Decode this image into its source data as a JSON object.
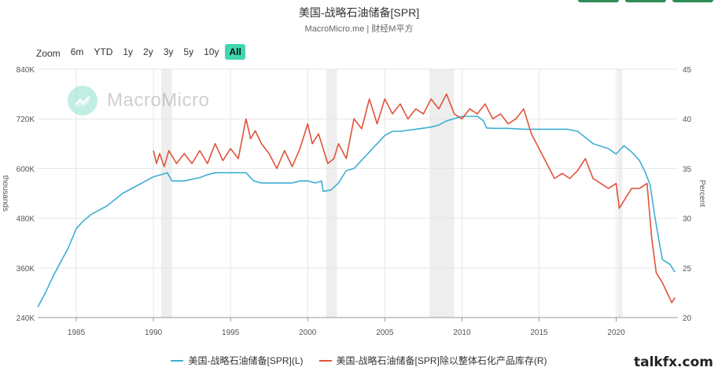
{
  "header": {
    "title": "美国-战略石油储备[SPR]",
    "subtitle": "MacroMicro.me | 财经M平方"
  },
  "zoom": {
    "label": "Zoom",
    "buttons": [
      "6m",
      "YTD",
      "1y",
      "2y",
      "3y",
      "5y",
      "10y",
      "All"
    ],
    "active": "All"
  },
  "watermark": {
    "text": "MacroMicro"
  },
  "brand": {
    "text": "talkfx.com"
  },
  "legend": [
    {
      "label": "美国-战略石油储备[SPR](L)",
      "color": "#3eaed2"
    },
    {
      "label": "美国-战略石油储备[SPR]除以整体石化产品库存(R)",
      "color": "#e0533b"
    }
  ],
  "chart_data": {
    "type": "line",
    "xlim": [
      1982.5,
      2024.0
    ],
    "x_ticks": [
      "1985",
      "1990",
      "1995",
      "2000",
      "2005",
      "2010",
      "2015",
      "2020"
    ],
    "left_axis": {
      "label": "thousands",
      "ylim": [
        240,
        840
      ],
      "ticks": [
        240,
        360,
        480,
        600,
        720,
        840
      ],
      "tick_labels": [
        "240K",
        "360K",
        "480K",
        "600K",
        "720K",
        "840K"
      ]
    },
    "right_axis": {
      "label": "Percent",
      "ylim": [
        20,
        45
      ],
      "ticks": [
        20,
        25,
        30,
        35,
        40,
        45
      ],
      "tick_labels": [
        "20",
        "25",
        "30",
        "35",
        "40",
        "45"
      ]
    },
    "recessions": [
      [
        1990.5,
        1991.2
      ],
      [
        2001.2,
        2001.9
      ],
      [
        2007.9,
        2009.5
      ],
      [
        2020.1,
        2020.4
      ]
    ],
    "grid": true,
    "series": [
      {
        "name": "美国-战略石油储备[SPR](L)",
        "axis": "left",
        "color": "#3eaed2",
        "x": [
          1982.5,
          1983.0,
          1983.5,
          1984.0,
          1984.5,
          1985.0,
          1985.5,
          1986.0,
          1987.0,
          1988.0,
          1989.0,
          1990.0,
          1990.5,
          1990.9,
          1991.2,
          1992.0,
          1993.0,
          1993.5,
          1994.0,
          1995.0,
          1996.0,
          1996.5,
          1997.0,
          1998.0,
          1999.0,
          1999.5,
          2000.0,
          2000.5,
          2000.9,
          2001.0,
          2001.5,
          2002.0,
          2002.5,
          2003.0,
          2004.0,
          2005.0,
          2005.5,
          2006.0,
          2007.0,
          2008.0,
          2008.5,
          2009.0,
          2010.0,
          2011.0,
          2011.4,
          2011.6,
          2012.0,
          2013.0,
          2014.0,
          2015.0,
          2016.0,
          2016.8,
          2017.5,
          2018.5,
          2019.5,
          2020.0,
          2020.5,
          2021.0,
          2021.5,
          2021.9,
          2022.2,
          2022.5,
          2022.8,
          2023.0,
          2023.5,
          2023.8
        ],
        "y": [
          265,
          300,
          340,
          375,
          410,
          455,
          475,
          490,
          510,
          540,
          560,
          580,
          585,
          590,
          570,
          570,
          578,
          585,
          590,
          590,
          590,
          570,
          565,
          565,
          565,
          570,
          570,
          565,
          570,
          545,
          548,
          565,
          595,
          600,
          640,
          680,
          690,
          690,
          695,
          700,
          705,
          715,
          726,
          726,
          715,
          698,
          697,
          697,
          695,
          695,
          695,
          695,
          690,
          660,
          648,
          635,
          655,
          640,
          620,
          590,
          560,
          485,
          420,
          380,
          368,
          350
        ]
      },
      {
        "name": "美国-战略石油储备[SPR]除以整体石化产品库存(R)",
        "axis": "right",
        "color": "#e0533b",
        "x": [
          1990.0,
          1990.2,
          1990.4,
          1990.7,
          1991.0,
          1991.5,
          1992.0,
          1992.5,
          1993.0,
          1993.5,
          1994.0,
          1994.5,
          1995.0,
          1995.5,
          1996.0,
          1996.3,
          1996.6,
          1997.0,
          1997.5,
          1998.0,
          1998.5,
          1999.0,
          1999.5,
          2000.0,
          2000.3,
          2000.7,
          2001.0,
          2001.3,
          2001.7,
          2002.0,
          2002.5,
          2003.0,
          2003.5,
          2004.0,
          2004.5,
          2005.0,
          2005.5,
          2006.0,
          2006.5,
          2007.0,
          2007.5,
          2008.0,
          2008.5,
          2009.0,
          2009.5,
          2010.0,
          2010.5,
          2011.0,
          2011.5,
          2012.0,
          2012.5,
          2013.0,
          2013.5,
          2014.0,
          2014.5,
          2015.0,
          2015.5,
          2016.0,
          2016.5,
          2017.0,
          2017.5,
          2018.0,
          2018.5,
          2019.0,
          2019.5,
          2020.0,
          2020.2,
          2020.6,
          2021.0,
          2021.5,
          2022.0,
          2022.3,
          2022.6,
          2023.0,
          2023.3,
          2023.6,
          2023.8
        ],
        "y": [
          36.8,
          35.5,
          36.5,
          35.2,
          36.8,
          35.5,
          36.5,
          35.5,
          36.8,
          35.5,
          37.5,
          35.8,
          37.0,
          36.0,
          40.0,
          38.0,
          38.8,
          37.5,
          36.5,
          35.0,
          36.8,
          35.2,
          37.0,
          39.5,
          37.5,
          38.5,
          37.0,
          35.5,
          36.0,
          37.5,
          36.0,
          40.0,
          39.0,
          42.0,
          39.5,
          42.0,
          40.5,
          41.5,
          40.0,
          41.0,
          40.5,
          42.0,
          41.0,
          42.5,
          40.5,
          40.0,
          41.0,
          40.5,
          41.5,
          40.0,
          40.5,
          39.5,
          40.0,
          41.0,
          38.5,
          37.0,
          35.5,
          34.0,
          34.5,
          34.0,
          34.8,
          36.0,
          34.0,
          33.5,
          33.0,
          33.5,
          31.0,
          32.0,
          33.0,
          33.0,
          33.5,
          28.0,
          24.5,
          23.5,
          22.5,
          21.5,
          22.0
        ]
      }
    ]
  }
}
